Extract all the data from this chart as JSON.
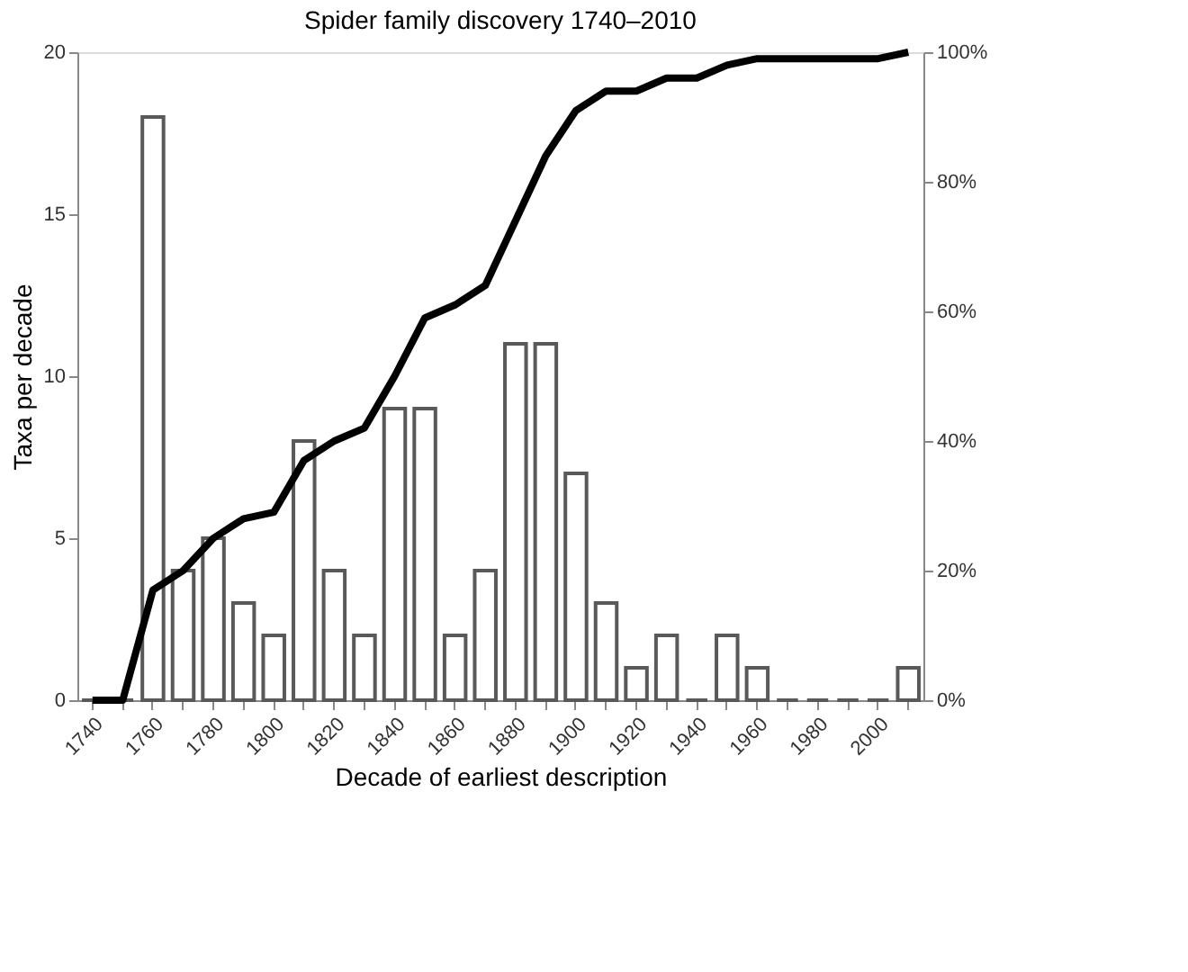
{
  "chart_data": {
    "type": "bar",
    "title": "Spider family discovery 1740–2010",
    "xlabel": "Decade of earliest description",
    "ylabel": "Taxa per decade",
    "categories": [
      "1740",
      null,
      "1760",
      null,
      "1780",
      null,
      "1800",
      null,
      "1820",
      null,
      "1840",
      null,
      "1860",
      null,
      "1880",
      null,
      "1900",
      null,
      "1920",
      null,
      "1940",
      null,
      "1960",
      null,
      "1980",
      null,
      "2000",
      null
    ],
    "series": [
      {
        "color": "#595959",
        "values": [
          0,
          0,
          18,
          4,
          5,
          3,
          2,
          8,
          4,
          2,
          9,
          9,
          2,
          4,
          11,
          11,
          7,
          3,
          1,
          2,
          0,
          2,
          1,
          0,
          0,
          0,
          0,
          1
        ]
      },
      {
        "type": "line",
        "axis": "y2",
        "color": "#000000",
        "values": [
          0,
          0,
          17,
          20,
          25,
          28,
          29,
          37,
          40,
          42,
          50,
          59,
          61,
          64,
          74,
          84,
          91,
          94,
          94,
          96,
          96,
          98,
          99,
          99,
          99,
          99,
          99,
          100
        ]
      }
    ],
    "ylim": [
      0,
      20
    ],
    "yticks": [
      0,
      5,
      10,
      15,
      20
    ],
    "y2lim": [
      0,
      100
    ],
    "y2ticks": [
      {
        "value": 0,
        "label": "0%"
      },
      {
        "value": 20,
        "label": "20%"
      },
      {
        "value": 40,
        "label": "40%"
      },
      {
        "value": 60,
        "label": "60%"
      },
      {
        "value": 80,
        "label": "80%"
      },
      {
        "value": 100,
        "label": "100%"
      }
    ],
    "grid": false,
    "legend": false,
    "marker": "none",
    "line_style": "solid"
  }
}
